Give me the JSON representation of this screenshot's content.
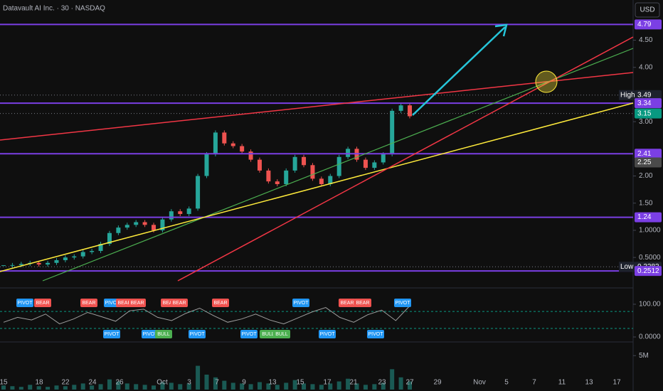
{
  "header": {
    "title": "Datavault AI Inc. · 30 · NASDAQ",
    "currency": "USD"
  },
  "chart_data": [
    {
      "type": "candlestick",
      "categories": [
        "15",
        "18",
        "22",
        "24",
        "26",
        "Oct",
        "3",
        "7",
        "9",
        "13",
        "15",
        "17",
        "21",
        "23",
        "27",
        "29",
        "Nov",
        "5",
        "7",
        "11",
        "13",
        "17"
      ],
      "close": [
        0.35,
        0.36,
        0.38,
        0.4,
        0.37,
        0.4,
        0.45,
        0.5,
        0.52,
        0.6,
        0.62,
        0.75,
        0.95,
        1.05,
        1.1,
        1.15,
        1.1,
        1.0,
        1.2,
        1.35,
        1.3,
        1.4,
        2.0,
        2.4,
        2.8,
        2.6,
        2.55,
        2.45,
        2.3,
        2.1,
        1.9,
        1.85,
        2.1,
        2.35,
        2.2,
        1.95,
        1.85,
        2.0,
        2.35,
        2.5,
        2.3,
        2.15,
        2.25,
        2.4,
        3.2,
        3.3,
        3.1
      ],
      "up_color": "#26a69a",
      "down_color": "#ef5350",
      "ylim": [
        0.07,
        5.24
      ],
      "yticks": [
        {
          "value": 4.5,
          "label": "4.50"
        },
        {
          "value": 4.0,
          "label": "4.00"
        },
        {
          "value": 3.0,
          "label": "3.00"
        },
        {
          "value": 2.0,
          "label": "2.00"
        },
        {
          "value": 1.5,
          "label": "1.50"
        },
        {
          "value": 1.0,
          "label": "1.0000"
        },
        {
          "value": 0.5,
          "label": "0.5000"
        }
      ],
      "price_tags": [
        {
          "value": 4.79,
          "color": "#7b3fe4",
          "line": "solid"
        },
        {
          "name": "High",
          "value": 3.49,
          "color": "#1e222d",
          "line": "dotted"
        },
        {
          "value": 3.34,
          "color": "#7b3fe4",
          "line": "solid"
        },
        {
          "value": 3.15,
          "color": "#089981",
          "line": "dotted"
        },
        {
          "value": 2.41,
          "color": "#7b3fe4",
          "line": "solid"
        },
        {
          "value": 2.25,
          "color": "#4a4a4a"
        },
        {
          "value": 1.24,
          "color": "#7b3fe4",
          "line": "solid"
        },
        {
          "name": "Low",
          "value": 0.3283,
          "color": "#1e222d",
          "line": "dotted"
        },
        {
          "value": 0.2512,
          "color": "#7b3fe4",
          "line": "solid"
        }
      ]
    },
    {
      "type": "line",
      "values": [
        45,
        60,
        52,
        70,
        40,
        55,
        75,
        62,
        48,
        80,
        85,
        60,
        50,
        72,
        88,
        65,
        45,
        55,
        70,
        52,
        40,
        58,
        76,
        90,
        60,
        45,
        68,
        82,
        50,
        95
      ],
      "color": "#9e9e9e",
      "ylim": [
        -13,
        139
      ],
      "yticks": [
        {
          "value": 100,
          "label": "100.00"
        },
        {
          "value": 0,
          "label": "0.0000"
        }
      ],
      "bands": [
        78,
        26
      ],
      "annotations": [
        {
          "text": "PIVOT",
          "color": "#2196f3"
        },
        {
          "text": "BEAR",
          "color": "#f05350"
        },
        {
          "text": "BEAR",
          "color": "#f05350"
        },
        {
          "text": "PIVOT",
          "color": "#2196f3"
        },
        {
          "text": "BEAR",
          "color": "#f05350"
        },
        {
          "text": "BEAR",
          "color": "#f05350"
        },
        {
          "text": "BEAR",
          "color": "#f05350"
        },
        {
          "text": "BEAR",
          "color": "#f05350"
        },
        {
          "text": "BEAR",
          "color": "#f05350"
        },
        {
          "text": "PIVOT",
          "color": "#2196f3"
        },
        {
          "text": "BEAR",
          "color": "#f05350"
        },
        {
          "text": "BEAR",
          "color": "#f05350"
        },
        {
          "text": "PIVOT",
          "color": "#2196f3"
        },
        {
          "text": "PIVOT",
          "color": "#2196f3"
        },
        {
          "text": "PIVOT",
          "color": "#2196f3"
        },
        {
          "text": "BULL",
          "color": "#4caf50"
        },
        {
          "text": "PIVOT",
          "color": "#2196f3"
        },
        {
          "text": "PIVOT",
          "color": "#2196f3"
        },
        {
          "text": "BULL",
          "color": "#4caf50"
        },
        {
          "text": "BULL",
          "color": "#4caf50"
        },
        {
          "text": "PIVOT",
          "color": "#2196f3"
        },
        {
          "text": "PIVOT",
          "color": "#2196f3"
        }
      ]
    },
    {
      "type": "bar",
      "values": [
        600000,
        500000,
        400000,
        700000,
        500000,
        400000,
        600000,
        500000,
        700000,
        900000,
        600000,
        800000,
        1500000,
        1200000,
        900000,
        800000,
        700000,
        600000,
        1100000,
        1000000,
        800000,
        900000,
        3500000,
        2200000,
        1800000,
        1300000,
        1000000,
        900000,
        800000,
        1100000,
        900000,
        700000,
        1000000,
        1400000,
        900000,
        800000,
        700000,
        900000,
        1200000,
        1600000,
        900000,
        700000,
        800000,
        1000000,
        3000000,
        1800000,
        1200000
      ],
      "color": "#26a69a",
      "ylim": [
        0,
        6700000
      ],
      "yticks": [
        {
          "value": 5000000,
          "label": "5M"
        }
      ]
    }
  ]
}
